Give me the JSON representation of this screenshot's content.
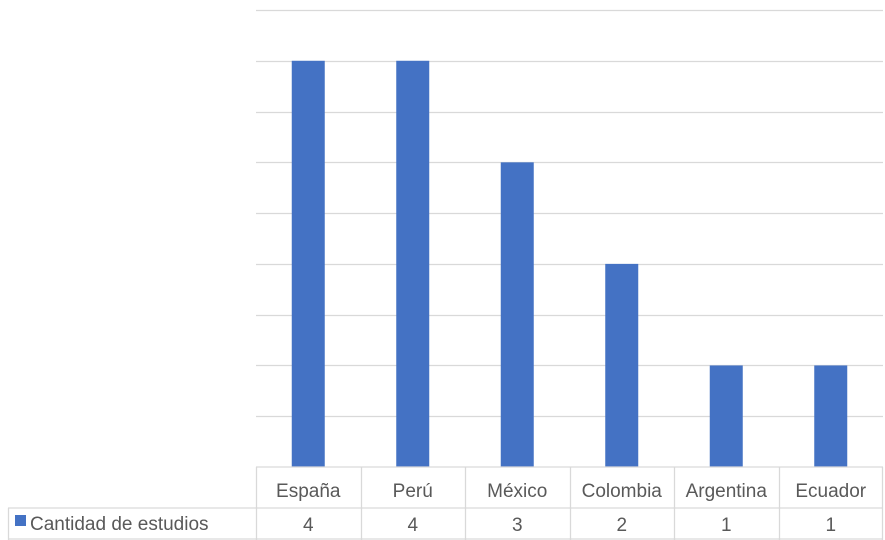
{
  "chart_data": {
    "type": "bar",
    "categories": [
      "España",
      "Perú",
      "México",
      "Colombia",
      "Argentina",
      "Ecuador"
    ],
    "series": [
      {
        "name": "Cantidad de estudios",
        "values": [
          4,
          4,
          3,
          2,
          1,
          1
        ],
        "color": "#4472C4"
      }
    ],
    "ylim": [
      0,
      4.5
    ],
    "grid": true,
    "legend": "data-table-left",
    "data_table": true
  },
  "colors": {
    "bar": "#4472C4",
    "grid": "#d9d9d9",
    "text": "#595959"
  }
}
